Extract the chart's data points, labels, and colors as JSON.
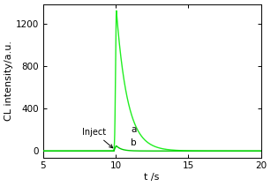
{
  "xlim": [
    5,
    20
  ],
  "ylim": [
    -60,
    1380
  ],
  "yticks": [
    0,
    400,
    800,
    1200
  ],
  "xticks": [
    5,
    10,
    15,
    20
  ],
  "xlabel": "t /s",
  "ylabel": "CL intensity/a.u.",
  "line_color_a": "#22ee22",
  "line_color_b": "#00cc00",
  "inject_label": "Inject",
  "label_a": "a",
  "label_b": "b",
  "peak_x": 10.05,
  "peak_a": 1320,
  "peak_b": 48,
  "rise_sigma_a": 0.08,
  "decay_rate_a": 1.3,
  "decay_rate_b": 2.8,
  "background_color": "#ffffff",
  "line_width": 1.0,
  "figsize": [
    3.07,
    2.11
  ],
  "dpi": 100
}
